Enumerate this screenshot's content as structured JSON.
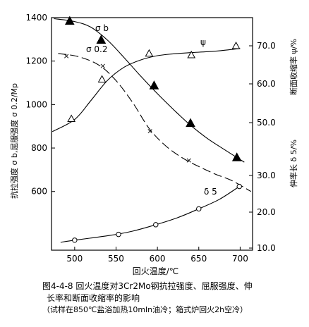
{
  "chart_data": {
    "type": "line",
    "xlabel": "回火温度/℃",
    "ylabel_left": "抗拉强度 σ b,屈服强度 σ 0.2/Mp",
    "ylabel_right_top": "断面收缩率 ψ/%",
    "ylabel_right_bottom": "伸率长 δ 5/%",
    "x_ticks": [
      500,
      550,
      600,
      650,
      700
    ],
    "xlim": [
      472,
      715
    ],
    "y_left_ticks": [
      600,
      800,
      1000,
      1200,
      1400
    ],
    "y_left_lim": [
      330,
      1400
    ],
    "y_right_ticks": [
      10.0,
      20.0,
      30.0,
      50.0,
      60.0,
      70.0
    ],
    "y_right_tick_labels": [
      "10.0",
      "20.0",
      "30.0",
      "50.0",
      "60.0",
      "70.0"
    ],
    "series": [
      {
        "name": "σ b",
        "axis": "left",
        "marker": "filled-triangle",
        "line_style": "solid",
        "points": [
          [
            494,
            1385
          ],
          [
            532,
            1298
          ],
          [
            596,
            1088
          ],
          [
            640,
            915
          ],
          [
            696,
            757
          ]
        ],
        "curve": [
          [
            475,
            1395
          ],
          [
            500,
            1382
          ],
          [
            520,
            1355
          ],
          [
            540,
            1295
          ],
          [
            560,
            1215
          ],
          [
            580,
            1130
          ],
          [
            600,
            1050
          ],
          [
            620,
            975
          ],
          [
            640,
            905
          ],
          [
            660,
            845
          ],
          [
            680,
            795
          ],
          [
            705,
            735
          ]
        ]
      },
      {
        "name": "σ 0.2",
        "axis": "left",
        "marker": "x",
        "line_style": "dashed",
        "points": [
          [
            490,
            1225
          ],
          [
            534,
            1180
          ],
          [
            591,
            880
          ],
          [
            638,
            745
          ]
        ],
        "curve": [
          [
            480,
            1235
          ],
          [
            505,
            1220
          ],
          [
            530,
            1180
          ],
          [
            550,
            1110
          ],
          [
            570,
            1010
          ],
          [
            590,
            890
          ],
          [
            610,
            810
          ],
          [
            630,
            755
          ],
          [
            650,
            715
          ],
          [
            670,
            680
          ],
          [
            690,
            650
          ],
          [
            713,
            600
          ]
        ]
      },
      {
        "name": "ψ",
        "axis": "right",
        "marker": "open-triangle",
        "line_style": "solid",
        "points": [
          [
            496,
            51.0
          ],
          [
            533,
            61.2
          ],
          [
            590,
            68.0
          ],
          [
            641,
            67.6
          ],
          [
            695,
            70.0
          ]
        ],
        "curve": [
          [
            473,
            46.6
          ],
          [
            500,
            50.8
          ],
          [
            520,
            55.8
          ],
          [
            540,
            61.0
          ],
          [
            560,
            64.4
          ],
          [
            580,
            66.3
          ],
          [
            600,
            67.4
          ],
          [
            620,
            67.9
          ],
          [
            640,
            68.2
          ],
          [
            670,
            68.6
          ],
          [
            700,
            69.3
          ]
        ]
      },
      {
        "name": "δ 5",
        "axis": "right",
        "marker": "open-circle",
        "line_style": "solid",
        "points": [
          [
            500,
            12.2
          ],
          [
            553,
            13.8
          ],
          [
            598,
            16.5
          ],
          [
            650,
            20.9
          ],
          [
            699,
            27.0
          ]
        ],
        "curve": [
          [
            483,
            11.6
          ],
          [
            500,
            12.2
          ],
          [
            520,
            12.8
          ],
          [
            545,
            13.6
          ],
          [
            570,
            14.7
          ],
          [
            598,
            16.5
          ],
          [
            625,
            18.5
          ],
          [
            650,
            20.9
          ],
          [
            675,
            23.5
          ],
          [
            699,
            27.0
          ]
        ]
      }
    ]
  },
  "caption": {
    "line1": "图4-4-8  回火温度对3Cr2Mo钢抗拉强度、屈服强度、伸",
    "line2": "长率和断面收缩率的影响",
    "line3": "（试样在850℃盐浴加热10mln油冷；箱式炉回火2h空冷）"
  }
}
